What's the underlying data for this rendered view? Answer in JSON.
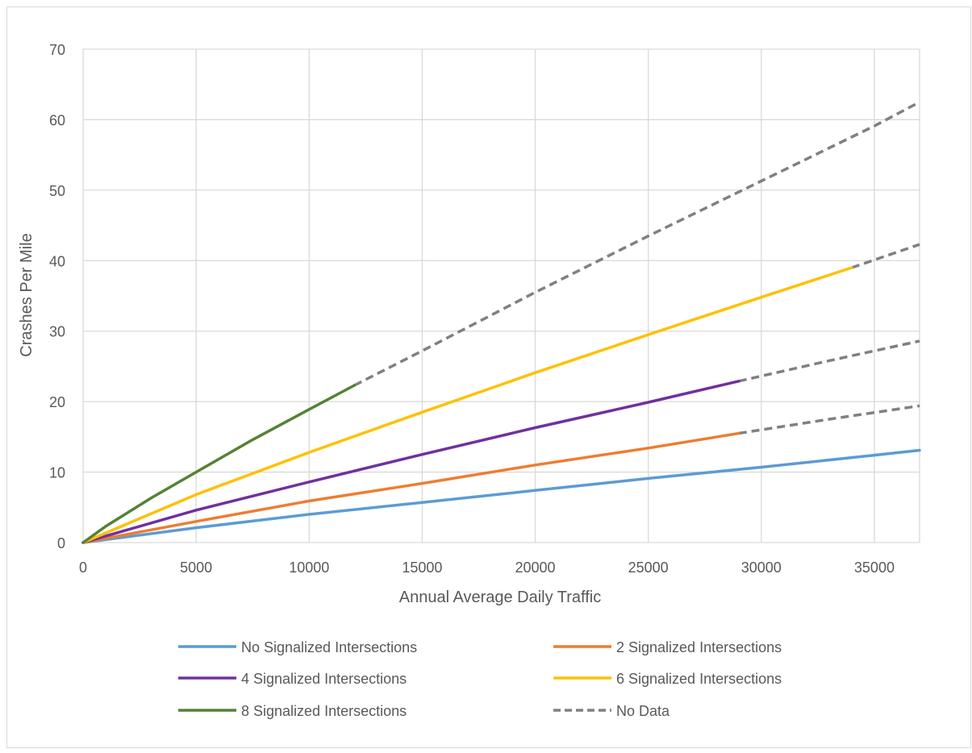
{
  "chart_data": {
    "type": "line",
    "title": "",
    "xlabel": "Annual Average Daily Traffic",
    "ylabel": "Crashes Per Mile",
    "xlim": [
      0,
      37000
    ],
    "ylim": [
      0,
      70
    ],
    "xticks": [
      0,
      5000,
      10000,
      15000,
      20000,
      25000,
      30000,
      35000
    ],
    "yticks": [
      0,
      10,
      20,
      30,
      40,
      50,
      60,
      70
    ],
    "grid": true,
    "legend_position": "bottom",
    "series": [
      {
        "name": "No Signalized Intersections",
        "color": "#5B9BD5",
        "style": "solid",
        "x": [
          0,
          5000,
          10000,
          15000,
          20000,
          25000,
          30000,
          35000,
          37000
        ],
        "y": [
          0,
          2.1,
          4.0,
          5.7,
          7.4,
          9.1,
          10.7,
          12.4,
          13.1
        ]
      },
      {
        "name": "2 Signalized Intersections",
        "color": "#ED7D31",
        "style": "solid",
        "x": [
          0,
          5000,
          10000,
          15000,
          20000,
          25000,
          29000
        ],
        "y": [
          0,
          3.0,
          5.9,
          8.4,
          11.0,
          13.4,
          15.5
        ]
      },
      {
        "name": "4 Signalized Intersections",
        "color": "#7030A0",
        "style": "solid",
        "x": [
          0,
          5000,
          10000,
          15000,
          20000,
          25000,
          29000
        ],
        "y": [
          0,
          4.6,
          8.6,
          12.5,
          16.3,
          19.9,
          22.9
        ]
      },
      {
        "name": "6 Signalized Intersections",
        "color": "#FFC000",
        "style": "solid",
        "x": [
          0,
          5000,
          10000,
          15000,
          20000,
          25000,
          30000,
          34000
        ],
        "y": [
          0,
          6.8,
          12.8,
          18.5,
          24.1,
          29.5,
          34.8,
          39.0
        ]
      },
      {
        "name": "8 Signalized Intersections",
        "color": "#548235",
        "style": "solid",
        "x": [
          0,
          1000,
          3000,
          5000,
          7500,
          10000,
          12000
        ],
        "y": [
          0,
          2.3,
          6.3,
          10.0,
          14.6,
          18.9,
          22.3
        ]
      }
    ],
    "no_data_segments": [
      {
        "x": [
          12000,
          15000,
          20000,
          25000,
          30000,
          35000,
          37000
        ],
        "y": [
          22.3,
          27.2,
          35.5,
          43.5,
          51.3,
          59.1,
          62.5
        ]
      },
      {
        "x": [
          34000,
          37000
        ],
        "y": [
          39.0,
          42.3
        ]
      },
      {
        "x": [
          29000,
          33000,
          37000
        ],
        "y": [
          22.9,
          25.8,
          28.6
        ]
      },
      {
        "x": [
          29000,
          33000,
          37000
        ],
        "y": [
          15.5,
          17.5,
          19.4
        ]
      }
    ],
    "legend": [
      {
        "label": "No Signalized Intersections",
        "color": "#5B9BD5",
        "style": "solid"
      },
      {
        "label": "2 Signalized Intersections",
        "color": "#ED7D31",
        "style": "solid"
      },
      {
        "label": "4 Signalized Intersections",
        "color": "#7030A0",
        "style": "solid"
      },
      {
        "label": "6 Signalized Intersections",
        "color": "#FFC000",
        "style": "solid"
      },
      {
        "label": "8 Signalized Intersections",
        "color": "#548235",
        "style": "solid"
      },
      {
        "label": "No Data",
        "color": "#808080",
        "style": "dashed"
      }
    ]
  }
}
